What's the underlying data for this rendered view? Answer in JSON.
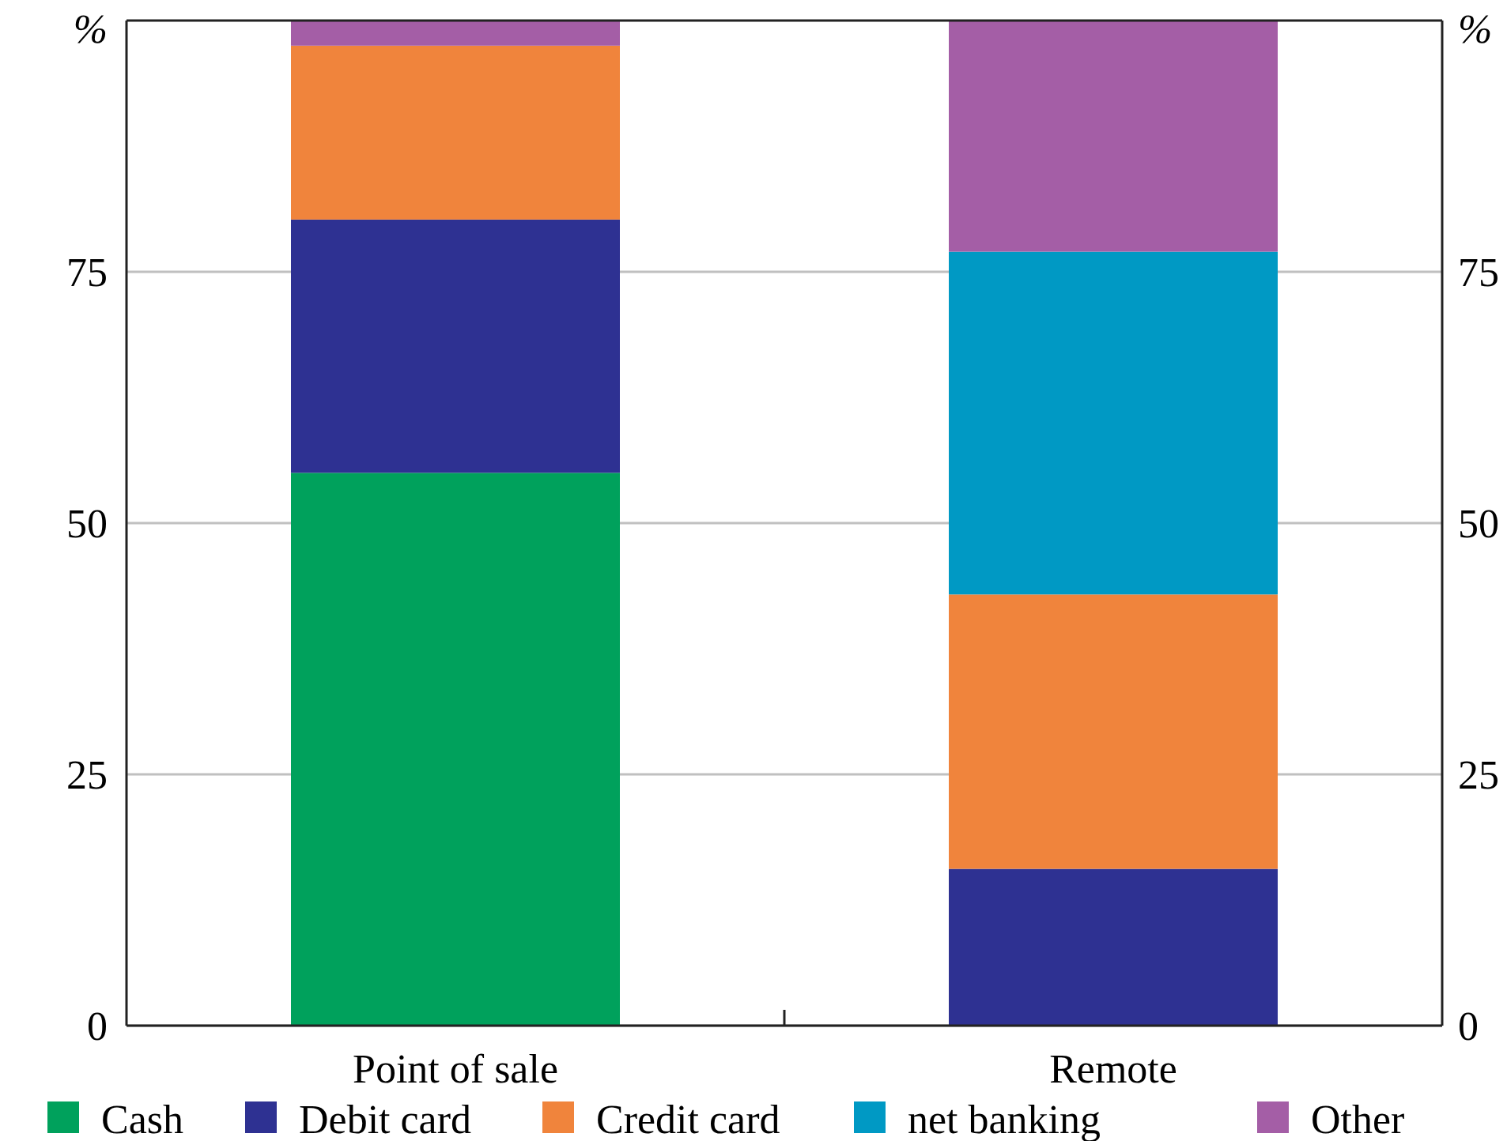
{
  "chart_data": {
    "type": "bar",
    "stacked": true,
    "ylabel": "%",
    "y2label": "%",
    "categories": [
      "Point of sale",
      "Remote"
    ],
    "series": [
      {
        "name": "Cash",
        "color": "#00a15c",
        "values": [
          55.0,
          0
        ]
      },
      {
        "name": "Debit card",
        "color": "#2e3192",
        "values": [
          25.2,
          15.6
        ]
      },
      {
        "name": "Credit card",
        "color": "#f0843c",
        "values": [
          17.3,
          27.3
        ]
      },
      {
        "name": "net banking",
        "color": "#0099c4",
        "values": [
          0,
          34.1
        ]
      },
      {
        "name": "Other",
        "color": "#a45ea6",
        "values": [
          2.5,
          23.0
        ]
      }
    ],
    "ylim": [
      0,
      100
    ],
    "yticks": [
      0,
      25,
      50,
      75
    ],
    "y2lim": [
      0,
      100
    ],
    "y2ticks": [
      0,
      25,
      50,
      75
    ],
    "grid": "y",
    "legend": "bottom"
  }
}
